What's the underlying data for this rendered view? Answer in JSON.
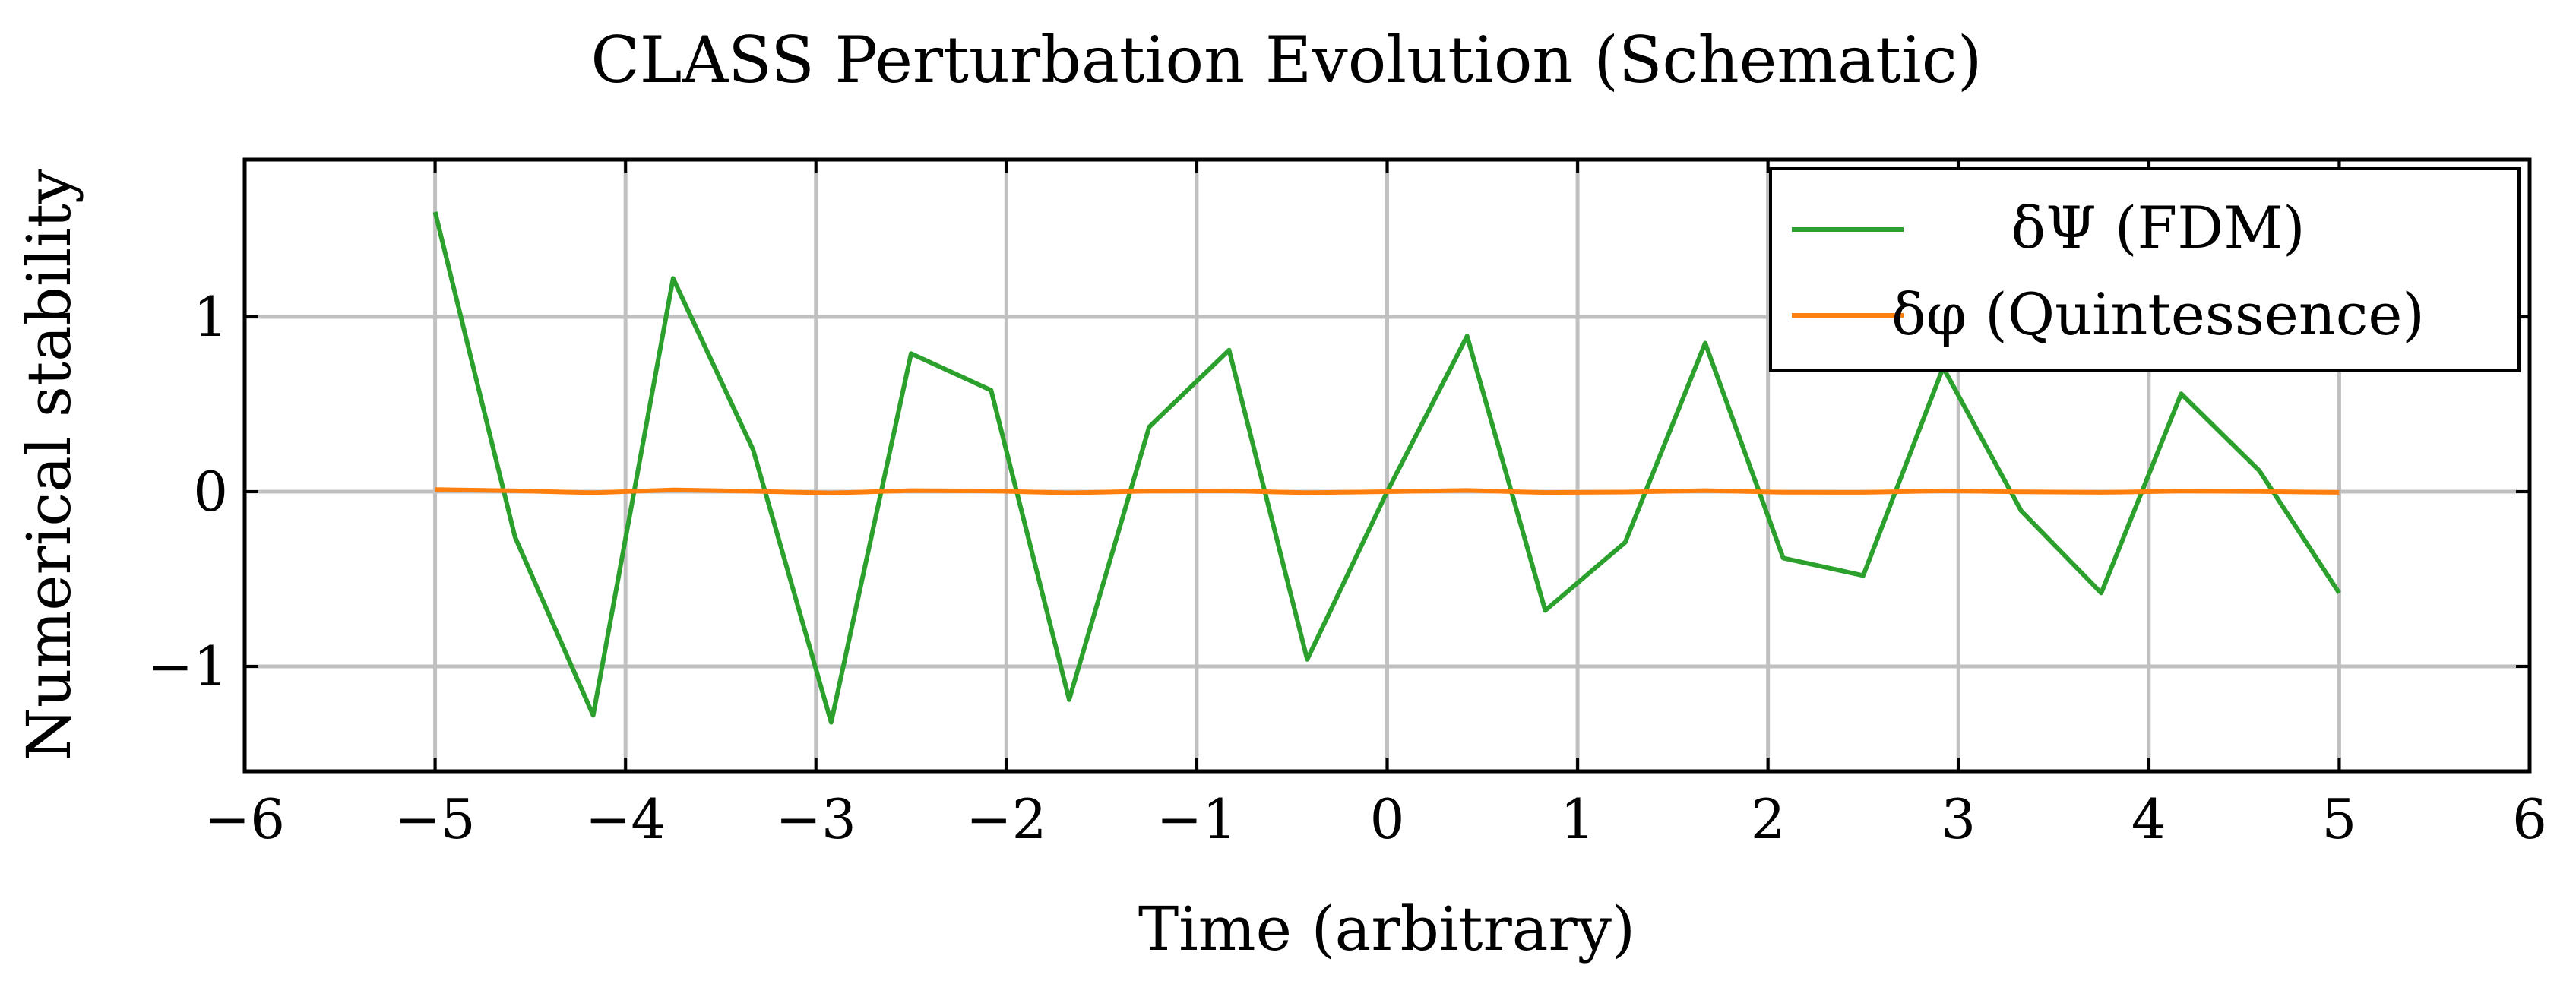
{
  "chart_data": {
    "type": "line",
    "title": "CLASS Perturbation Evolution (Schematic)",
    "xlabel": "Time (arbitrary)",
    "ylabel": "Numerical stability",
    "xlim": [
      -6,
      6
    ],
    "ylim": [
      -1.6,
      1.9
    ],
    "x_ticks": [
      {
        "value": -6,
        "label": "−6"
      },
      {
        "value": -5,
        "label": "−5"
      },
      {
        "value": -4,
        "label": "−4"
      },
      {
        "value": -3,
        "label": "−3"
      },
      {
        "value": -2,
        "label": "−2"
      },
      {
        "value": -1,
        "label": "−1"
      },
      {
        "value": 0,
        "label": "0"
      },
      {
        "value": 1,
        "label": "1"
      },
      {
        "value": 2,
        "label": "2"
      },
      {
        "value": 3,
        "label": "3"
      },
      {
        "value": 4,
        "label": "4"
      },
      {
        "value": 5,
        "label": "5"
      },
      {
        "value": 6,
        "label": "6"
      }
    ],
    "y_ticks": [
      {
        "value": -1,
        "label": "−1"
      },
      {
        "value": 0,
        "label": "0"
      },
      {
        "value": 1,
        "label": "1"
      }
    ],
    "grid": true,
    "legend_position": "top-right",
    "series": [
      {
        "name": "δΨ (FDM)",
        "color": "#2ca02c",
        "x": [
          -5,
          -4.58,
          -4.17,
          -3.75,
          -3.33,
          -2.92,
          -2.5,
          -2.08,
          -1.67,
          -1.25,
          -0.83,
          -0.42,
          0,
          0.42,
          0.83,
          1.25,
          1.67,
          2.08,
          2.5,
          2.92,
          3.33,
          3.75,
          4.17,
          4.58,
          5
        ],
        "y": [
          1.6,
          -0.26,
          -1.28,
          1.22,
          0.24,
          -1.32,
          0.79,
          0.58,
          -1.19,
          0.37,
          0.81,
          -0.96,
          0.0,
          0.89,
          -0.68,
          -0.29,
          0.85,
          -0.38,
          -0.48,
          0.71,
          -0.11,
          -0.58,
          0.56,
          0.12,
          -0.58
        ]
      },
      {
        "name": "δφ (Quintessence)",
        "color": "#ff7f0e",
        "x": [
          -5,
          -4.58,
          -4.17,
          -3.75,
          -3.33,
          -2.92,
          -2.5,
          -2.08,
          -1.67,
          -1.25,
          -0.83,
          -0.42,
          0,
          0.42,
          0.83,
          1.25,
          1.67,
          2.08,
          2.5,
          2.92,
          3.33,
          3.75,
          4.17,
          4.58,
          5
        ],
        "y": [
          0.012,
          0.005,
          -0.006,
          0.01,
          0.002,
          -0.008,
          0.006,
          0.004,
          -0.007,
          0.003,
          0.005,
          -0.006,
          0.0,
          0.007,
          -0.005,
          -0.002,
          0.006,
          -0.003,
          -0.004,
          0.005,
          -0.001,
          -0.004,
          0.003,
          0.001,
          -0.004
        ]
      }
    ]
  }
}
